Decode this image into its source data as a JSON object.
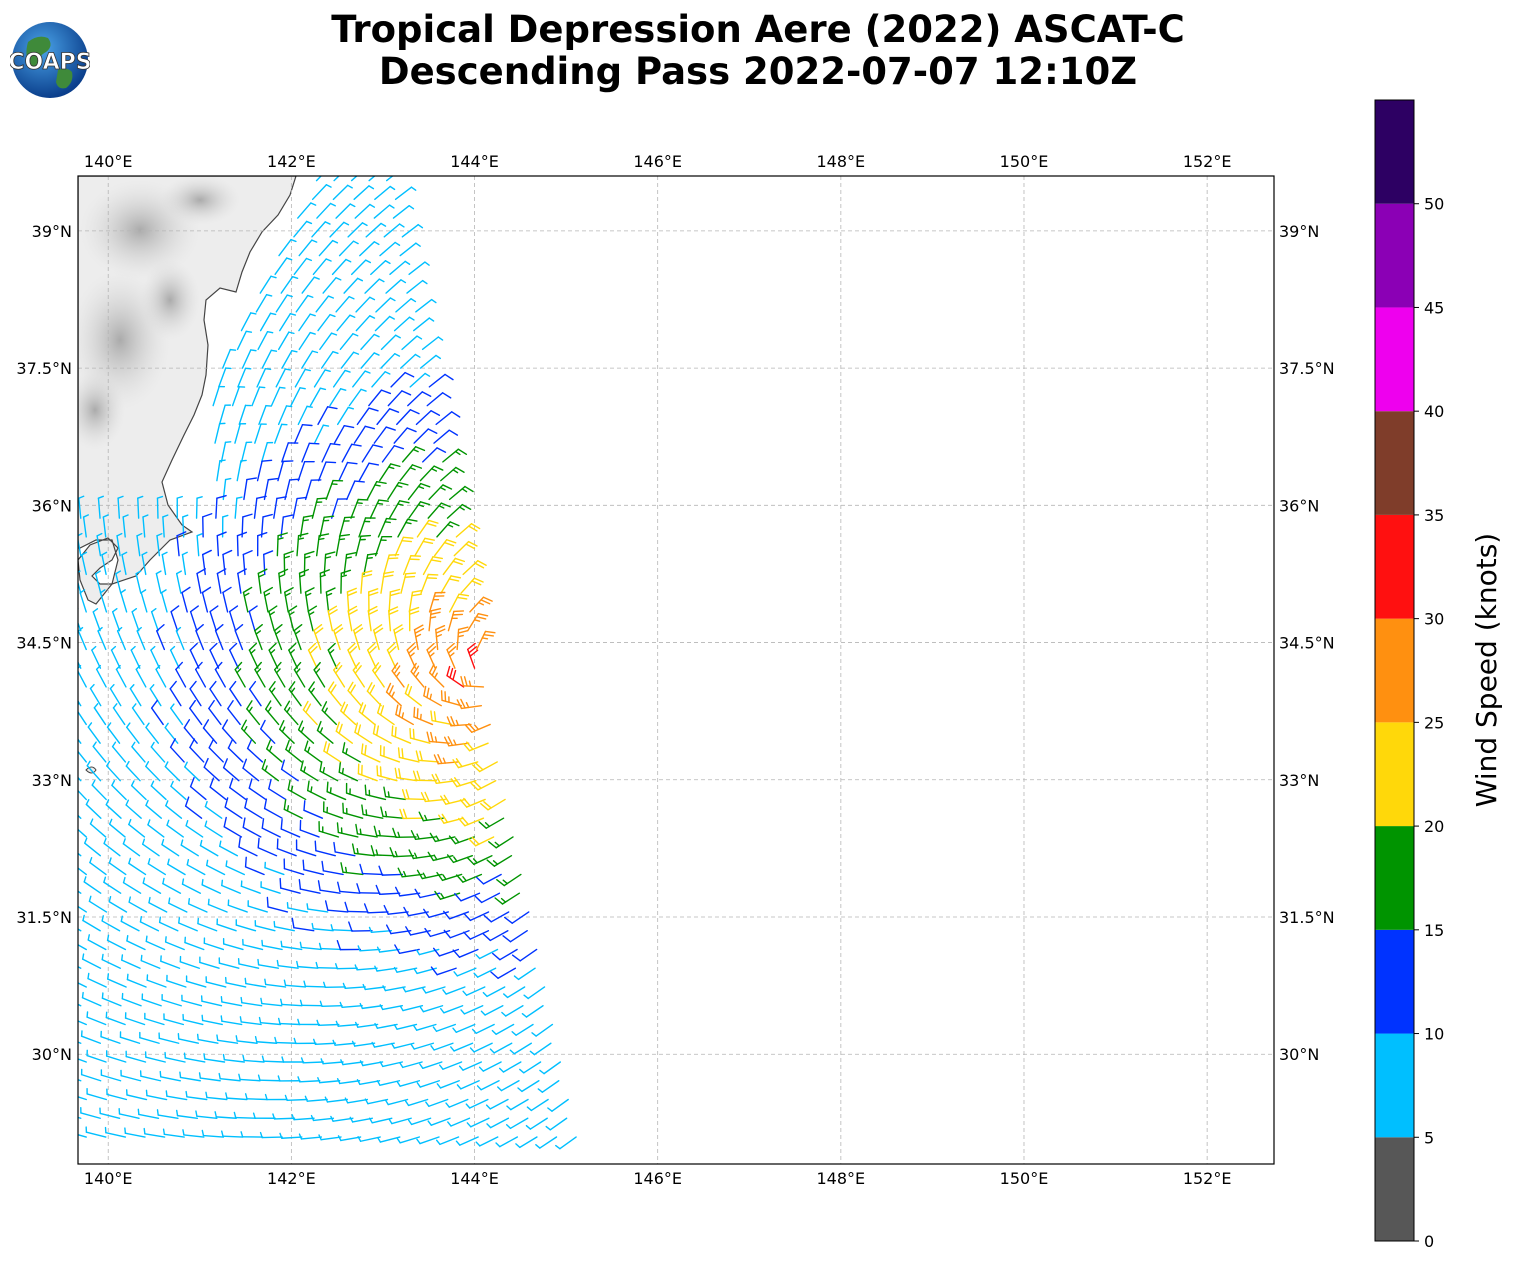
{
  "title_line1": "Tropical Depression Aere (2022) ASCAT-C",
  "title_line2": "Descending Pass 2022-07-07 12:10Z",
  "logo": {
    "text": "COAPS",
    "icon": "globe-logo-icon"
  },
  "map": {
    "lon_range": [
      139.67,
      152.73
    ],
    "lat_range": [
      28.8,
      39.6
    ],
    "lon_ticks": [
      140,
      142,
      144,
      146,
      148,
      150,
      152
    ],
    "lon_tick_labels": [
      "140°E",
      "142°E",
      "144°E",
      "146°E",
      "148°E",
      "150°E",
      "152°E"
    ],
    "lat_ticks": [
      30,
      31.5,
      33,
      34.5,
      36,
      37.5,
      39
    ],
    "lat_tick_labels": [
      "30°N",
      "31.5°N",
      "33°N",
      "34.5°N",
      "36°N",
      "37.5°N",
      "39°N"
    ],
    "gridlines": true,
    "land": "Japan (Honshu east coast), terrain shaded gray"
  },
  "colorbar": {
    "label": "Wind Speed (knots)",
    "ticks": [
      0,
      5,
      10,
      15,
      20,
      25,
      30,
      35,
      40,
      45,
      50
    ],
    "bins": [
      {
        "min": 0,
        "max": 5,
        "color": "#575757"
      },
      {
        "min": 5,
        "max": 10,
        "color": "#00bfff"
      },
      {
        "min": 10,
        "max": 15,
        "color": "#0033ff"
      },
      {
        "min": 15,
        "max": 20,
        "color": "#009400"
      },
      {
        "min": 20,
        "max": 25,
        "color": "#ffd80a"
      },
      {
        "min": 25,
        "max": 30,
        "color": "#ff9010"
      },
      {
        "min": 30,
        "max": 35,
        "color": "#ff1010"
      },
      {
        "min": 35,
        "max": 40,
        "color": "#7f3d2a"
      },
      {
        "min": 40,
        "max": 45,
        "color": "#ee00ee"
      },
      {
        "min": 45,
        "max": 50,
        "color": "#8b00b5"
      },
      {
        "min": 50,
        "max": 55,
        "color": "#2d0063"
      }
    ]
  }
}
